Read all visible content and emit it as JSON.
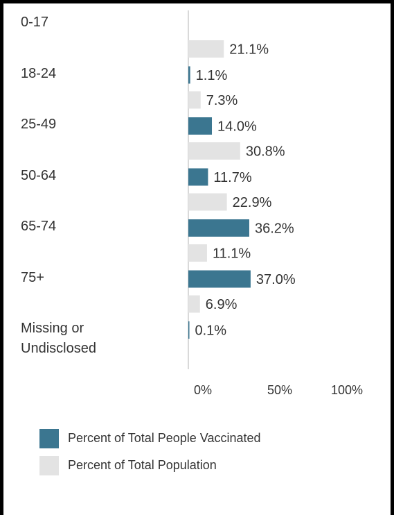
{
  "chart_data": {
    "type": "bar",
    "orientation": "horizontal",
    "categories": [
      "0-17",
      "18-24",
      "25-49",
      "50-64",
      "65-74",
      "75+",
      "Missing or\nUndisclosed"
    ],
    "series": [
      {
        "name": "Percent of Total People Vaccinated",
        "color": "#3b7690",
        "values": [
          null,
          1.1,
          14.0,
          11.7,
          36.2,
          37.0,
          0.1
        ],
        "labels": [
          "",
          "1.1%",
          "14.0%",
          "11.7%",
          "36.2%",
          "37.0%",
          "0.1%"
        ]
      },
      {
        "name": "Percent of Total Population",
        "color": "#e3e3e3",
        "values": [
          21.1,
          7.3,
          30.8,
          22.9,
          11.1,
          6.9,
          null
        ],
        "labels": [
          "21.1%",
          "7.3%",
          "30.8%",
          "22.9%",
          "11.1%",
          "6.9%",
          ""
        ]
      }
    ],
    "xlim": [
      0,
      100
    ],
    "x_ticks": [
      "0%",
      "50%",
      "100%"
    ],
    "grid": false,
    "legend_position": "bottom-left"
  }
}
